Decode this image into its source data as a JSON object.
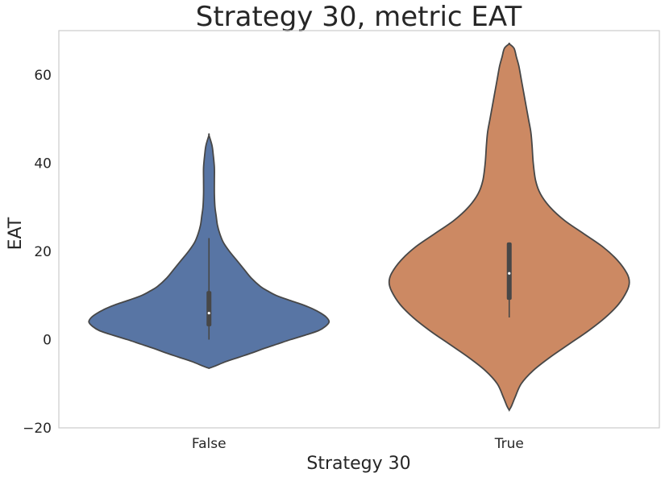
{
  "chart_data": {
    "type": "violin",
    "title": "Strategy 30, metric EAT",
    "xlabel": "Strategy 30",
    "ylabel": "EAT",
    "ylim": [
      -20,
      70
    ],
    "yticks": [
      -20,
      0,
      20,
      40,
      60
    ],
    "grid": false,
    "categories": [
      "False",
      "True"
    ],
    "colors": [
      "#5875a4",
      "#cc8963"
    ],
    "violins": [
      {
        "category": "False",
        "range": [
          -6.5,
          46.3
        ],
        "quartiles": [
          3,
          6,
          11
        ],
        "whiskers": [
          0,
          23
        ],
        "density": [
          [
            -6.5,
            0.0
          ],
          [
            -6,
            0.05
          ],
          [
            -5,
            0.14
          ],
          [
            -4,
            0.25
          ],
          [
            -3,
            0.36
          ],
          [
            -2,
            0.46
          ],
          [
            -1,
            0.57
          ],
          [
            0,
            0.68
          ],
          [
            1,
            0.8
          ],
          [
            2,
            0.91
          ],
          [
            3,
            0.97
          ],
          [
            4,
            1.0
          ],
          [
            5,
            0.98
          ],
          [
            6,
            0.93
          ],
          [
            7,
            0.86
          ],
          [
            8,
            0.77
          ],
          [
            9,
            0.66
          ],
          [
            10,
            0.56
          ],
          [
            11,
            0.49
          ],
          [
            12,
            0.43
          ],
          [
            14,
            0.35
          ],
          [
            16,
            0.29
          ],
          [
            18,
            0.23
          ],
          [
            20,
            0.17
          ],
          [
            22,
            0.12
          ],
          [
            24,
            0.09
          ],
          [
            26,
            0.07
          ],
          [
            28,
            0.06
          ],
          [
            30,
            0.05
          ],
          [
            33,
            0.045
          ],
          [
            36,
            0.045
          ],
          [
            39,
            0.045
          ],
          [
            42,
            0.035
          ],
          [
            44,
            0.025
          ],
          [
            46.3,
            0.0
          ]
        ]
      },
      {
        "category": "True",
        "range": [
          -16,
          67
        ],
        "quartiles": [
          9,
          15,
          22
        ],
        "whiskers": [
          5,
          22
        ],
        "density": [
          [
            -16,
            0.0
          ],
          [
            -15,
            0.02
          ],
          [
            -13,
            0.05
          ],
          [
            -10,
            0.1
          ],
          [
            -7,
            0.2
          ],
          [
            -4,
            0.34
          ],
          [
            -1,
            0.5
          ],
          [
            2,
            0.66
          ],
          [
            5,
            0.8
          ],
          [
            8,
            0.91
          ],
          [
            11,
            0.98
          ],
          [
            13,
            1.0
          ],
          [
            15,
            0.98
          ],
          [
            18,
            0.9
          ],
          [
            21,
            0.78
          ],
          [
            24,
            0.62
          ],
          [
            27,
            0.46
          ],
          [
            30,
            0.34
          ],
          [
            33,
            0.26
          ],
          [
            36,
            0.22
          ],
          [
            40,
            0.2
          ],
          [
            44,
            0.19
          ],
          [
            47,
            0.18
          ],
          [
            50,
            0.16
          ],
          [
            53,
            0.14
          ],
          [
            56,
            0.12
          ],
          [
            59,
            0.1
          ],
          [
            62,
            0.08
          ],
          [
            64,
            0.06
          ],
          [
            66,
            0.04
          ],
          [
            67,
            0.0
          ]
        ]
      }
    ]
  }
}
